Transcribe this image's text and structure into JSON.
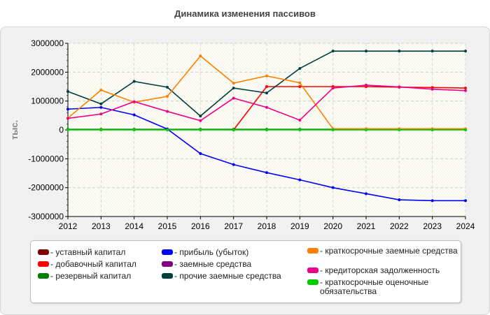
{
  "chart_data": {
    "type": "line",
    "title": "Динамика изменения пассивов",
    "ylabel": "тыс.",
    "xlabel": "",
    "x": [
      "2012",
      "2013",
      "2014",
      "2015",
      "2016",
      "2017",
      "2018",
      "2019",
      "2020",
      "2021",
      "2022",
      "2023",
      "2024"
    ],
    "ylim": [
      -3000000,
      3000000
    ],
    "yticks": [
      3000000,
      2000000,
      1000000,
      0,
      -1000000,
      -2000000,
      -3000000
    ],
    "ytick_labels": [
      "3000000",
      "2000000",
      "1000000",
      "0",
      "-1000000",
      "-2000000",
      "-3000000"
    ],
    "grid": true,
    "legend_position": "bottom",
    "series": [
      {
        "name": "- уставный капитал",
        "color": "#800000",
        "values": [
          10000,
          10000,
          10000,
          10000,
          10000,
          10000,
          10000,
          10000,
          10000,
          10000,
          10000,
          10000,
          10000
        ]
      },
      {
        "name": "- добавочный капитал",
        "color": "#ff0000",
        "values": [
          null,
          null,
          null,
          null,
          null,
          0,
          1500000,
          1500000,
          1500000,
          1500000,
          1480000,
          1470000,
          1450000
        ]
      },
      {
        "name": "- резервный капитал",
        "color": "#008000",
        "values": [
          20000,
          20000,
          20000,
          20000,
          20000,
          20000,
          20000,
          20000,
          20000,
          20000,
          20000,
          20000,
          20000
        ]
      },
      {
        "name": "- прибыль (убыток)",
        "color": "#0000ff",
        "values": [
          720000,
          780000,
          520000,
          30000,
          -820000,
          -1200000,
          -1480000,
          -1730000,
          -2000000,
          -2210000,
          -2420000,
          -2450000,
          -2450000
        ]
      },
      {
        "name": "- заемные средства",
        "color": "#800080",
        "values": [
          null,
          null,
          null,
          null,
          null,
          null,
          null,
          null,
          null,
          null,
          null,
          null,
          null
        ]
      },
      {
        "name": "- прочие заемные средства",
        "color": "#004040",
        "values": [
          1330000,
          900000,
          1680000,
          1480000,
          480000,
          1450000,
          1280000,
          2130000,
          2730000,
          2730000,
          2730000,
          2730000,
          2730000
        ]
      },
      {
        "name": "- краткосрочные заемные средства",
        "color": "#ff8000",
        "values": [
          410000,
          1380000,
          960000,
          1160000,
          2560000,
          1620000,
          1870000,
          1630000,
          40000,
          40000,
          40000,
          40000,
          40000
        ]
      },
      {
        "name": "- кредиторская задолженность",
        "color": "#ee0088",
        "values": [
          400000,
          550000,
          980000,
          640000,
          320000,
          1100000,
          780000,
          340000,
          1450000,
          1550000,
          1490000,
          1410000,
          1360000
        ]
      },
      {
        "name": "- краткосрочные оценочные обязательства",
        "color": "#00cc00",
        "values": [
          0,
          0,
          0,
          0,
          0,
          0,
          0,
          0,
          0,
          0,
          0,
          0,
          0
        ]
      }
    ]
  }
}
